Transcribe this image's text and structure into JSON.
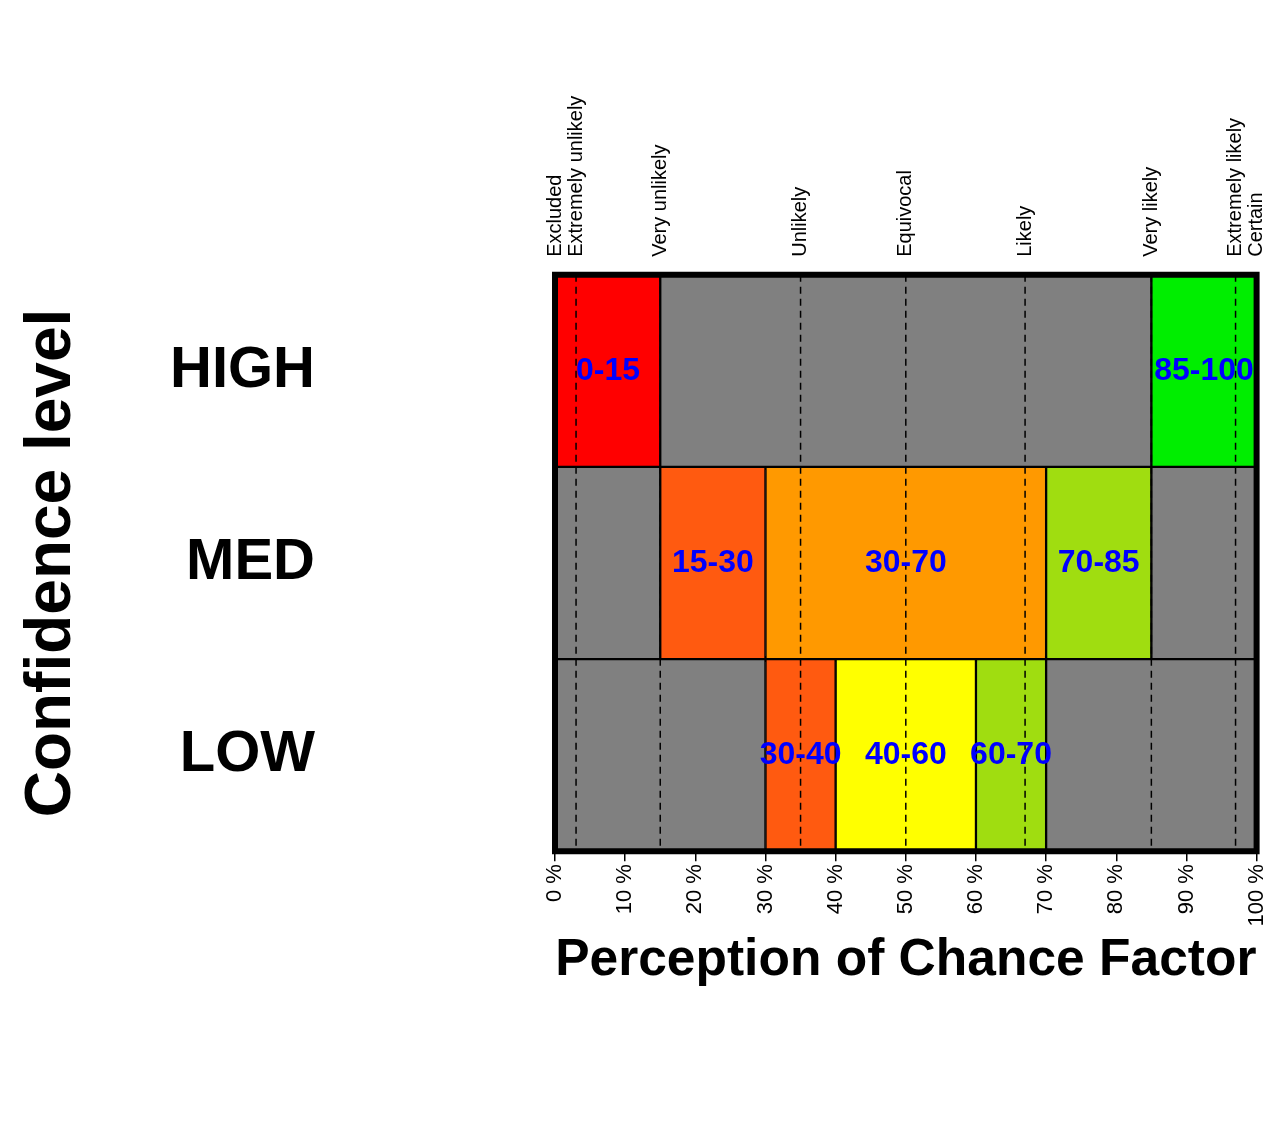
{
  "chart_data": {
    "type": "bar",
    "orientation": "horizontal",
    "xlabel": "Perception of Chance Factor",
    "ylabel": "Confidence level",
    "categories": [
      "HIGH",
      "MED",
      "LOW"
    ],
    "series": [
      {
        "color": "#ff0000",
        "values": [
          15,
          null,
          null
        ],
        "base": [
          0,
          null,
          null
        ],
        "value_labels": [
          "0-15",
          null,
          null
        ]
      },
      {
        "color": "#808080",
        "values": [
          70,
          15,
          30
        ],
        "base": [
          15,
          0,
          0
        ],
        "value_labels": [
          null,
          null,
          null
        ]
      },
      {
        "color": "#808080",
        "values": [
          null,
          15,
          30
        ],
        "base": [
          null,
          85,
          70
        ],
        "value_labels": [
          null,
          null,
          null
        ]
      },
      {
        "color": "#00ee00",
        "values": [
          15,
          null,
          null
        ],
        "base": [
          85,
          null,
          null
        ],
        "value_labels": [
          "85-100",
          null,
          null
        ]
      },
      {
        "color": "#ff5a10",
        "values": [
          null,
          15,
          10
        ],
        "base": [
          null,
          15,
          30
        ],
        "value_labels": [
          null,
          "15-30",
          "30-40"
        ]
      },
      {
        "color": "#ff9900",
        "values": [
          null,
          40,
          null
        ],
        "base": [
          null,
          30,
          null
        ],
        "value_labels": [
          null,
          "30-70",
          null
        ]
      },
      {
        "color": "#a0dd10",
        "values": [
          null,
          15,
          10
        ],
        "base": [
          null,
          70,
          60
        ],
        "value_labels": [
          null,
          "70-85",
          "60-70"
        ]
      },
      {
        "color": "#ffff00",
        "values": [
          null,
          null,
          20
        ],
        "base": [
          null,
          null,
          40
        ],
        "value_labels": [
          null,
          null,
          "40-60"
        ]
      }
    ],
    "xlim": [
      0,
      100
    ],
    "xticks": [
      {
        "value": 0,
        "label": "0 %"
      },
      {
        "value": 10,
        "label": "10 %"
      },
      {
        "value": 20,
        "label": "20 %"
      },
      {
        "value": 30,
        "label": "30 %"
      },
      {
        "value": 40,
        "label": "40 %"
      },
      {
        "value": 50,
        "label": "50 %"
      },
      {
        "value": 60,
        "label": "60 %"
      },
      {
        "value": 70,
        "label": "70 %"
      },
      {
        "value": 80,
        "label": "80 %"
      },
      {
        "value": 90,
        "label": "90 %"
      },
      {
        "value": 100,
        "label": "100 %"
      }
    ],
    "ref_lines": [
      {
        "axis": "x",
        "value": 3,
        "label": "Extremely unlikely",
        "line_style": "dashed"
      },
      {
        "axis": "x",
        "value": 15,
        "label": "Very unlikely",
        "line_style": "dashed"
      },
      {
        "axis": "x",
        "value": 35,
        "label": "Unlikely",
        "line_style": "dashed"
      },
      {
        "axis": "x",
        "value": 50,
        "label": "Equivocal",
        "line_style": "dashed"
      },
      {
        "axis": "x",
        "value": 67,
        "label": "Likely",
        "line_style": "dashed"
      },
      {
        "axis": "x",
        "value": 85,
        "label": "Very likely",
        "line_style": "dashed"
      },
      {
        "axis": "x",
        "value": 97,
        "label": "Extremely likely",
        "line_style": "dashed"
      }
    ],
    "annotations": [
      "Excluded",
      "Certain"
    ],
    "grid": false,
    "legend": false
  }
}
